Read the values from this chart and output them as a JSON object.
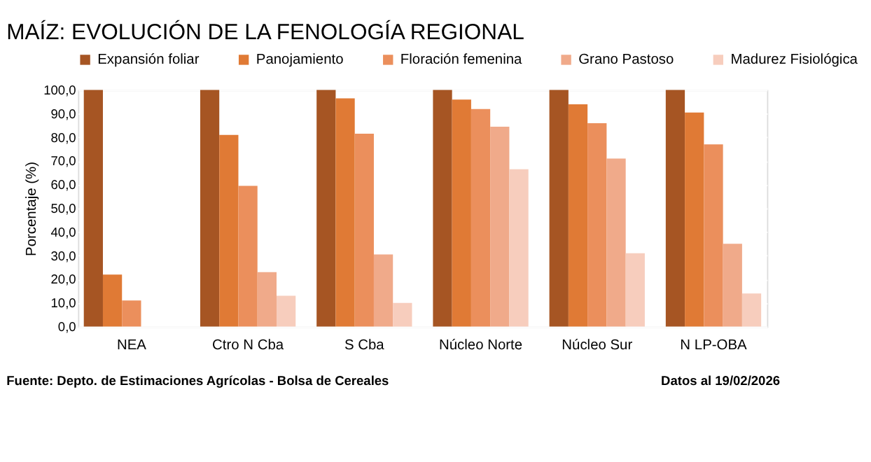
{
  "chart_data": {
    "type": "bar",
    "title": "MAÍZ: EVOLUCIÓN DE LA FENOLOGÍA REGIONAL",
    "ylabel": "Porcentaje (%)",
    "categories": [
      "NEA",
      "Ctro N Cba",
      "S Cba",
      "Núcleo Norte",
      "Núcleo Sur",
      "N LP-OBA"
    ],
    "series": [
      {
        "name": "Expansión foliar",
        "color": "#a65523",
        "values": [
          100,
          100,
          100,
          100,
          100,
          100
        ]
      },
      {
        "name": "Panojamiento",
        "color": "#e07a35",
        "values": [
          22,
          81,
          96.5,
          96,
          94,
          90.5
        ]
      },
      {
        "name": "Floración femenina",
        "color": "#eb8f5c",
        "values": [
          11,
          59.5,
          81.5,
          92,
          86,
          77
        ]
      },
      {
        "name": "Grano Pastoso",
        "color": "#f0aa8a",
        "values": [
          0,
          23,
          30.5,
          84.5,
          71,
          35
        ]
      },
      {
        "name": "Madurez Fisiológica",
        "color": "#f7cdbd",
        "values": [
          0,
          13,
          10,
          66.5,
          31,
          14
        ]
      }
    ],
    "ylim": [
      0,
      100
    ],
    "yticks": [
      {
        "value": 0,
        "label": "0,0"
      },
      {
        "value": 10,
        "label": "10,0"
      },
      {
        "value": 20,
        "label": "20,0"
      },
      {
        "value": 30,
        "label": "30,0"
      },
      {
        "value": 40,
        "label": "40,0"
      },
      {
        "value": 50,
        "label": "50,0"
      },
      {
        "value": 60,
        "label": "60,0"
      },
      {
        "value": 70,
        "label": "70,0"
      },
      {
        "value": 80,
        "label": "80,0"
      },
      {
        "value": 90,
        "label": "90,0"
      },
      {
        "value": 100,
        "label": "100,0"
      }
    ],
    "grid": "y",
    "legend": "top",
    "annotations": [
      "Fuente: Depto. de Estimaciones Agrícolas - Bolsa de Cereales",
      "Datos al 19/02/2026"
    ]
  }
}
